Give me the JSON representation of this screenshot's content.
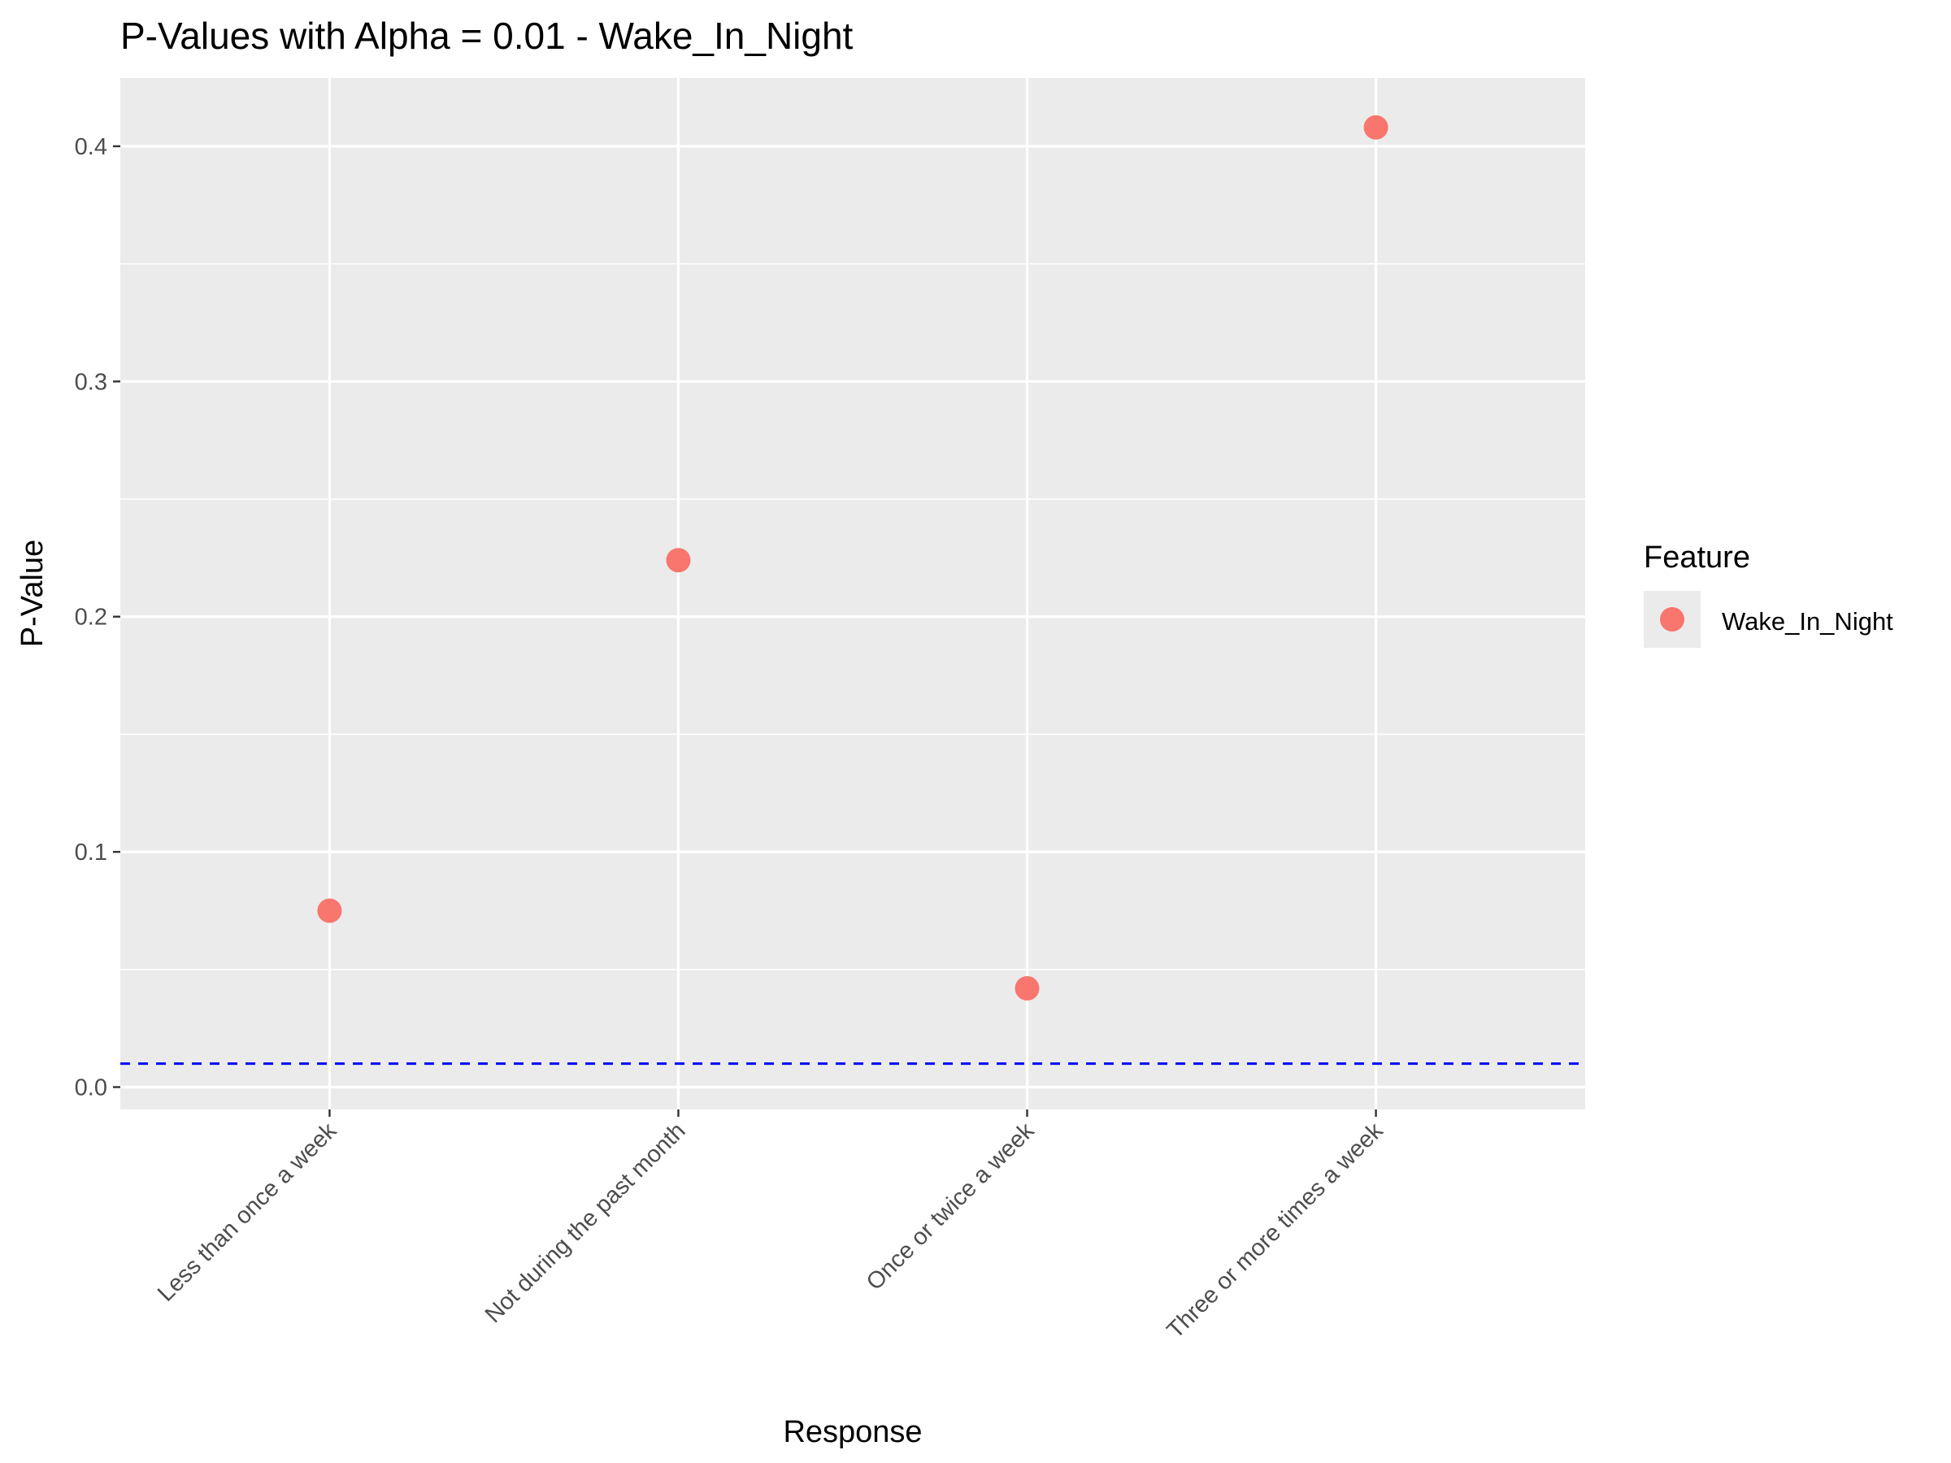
{
  "chart_data": {
    "type": "scatter",
    "title": "P-Values with Alpha = 0.01 - Wake_In_Night",
    "xlabel": "Response",
    "ylabel": "P-Value",
    "categories": [
      "Less than once a week",
      "Not during the past month",
      "Once or twice a week",
      "Three or more times a week"
    ],
    "series": [
      {
        "name": "Wake_In_Night",
        "values": [
          0.075,
          0.224,
          0.042,
          0.408
        ]
      }
    ],
    "ylim": [
      -0.0095,
      0.429
    ],
    "yticks": [
      0.0,
      0.1,
      0.2,
      0.3,
      0.4
    ],
    "ytick_labels": [
      "0.0",
      "0.1",
      "0.2",
      "0.3",
      "0.4"
    ],
    "reference_line": {
      "value": 0.01,
      "color": "#0000ff",
      "style": "dashed"
    },
    "legend": {
      "title": "Feature",
      "position": "right"
    },
    "grid": true,
    "colors": {
      "point": "#f8766d",
      "panel": "#ebebeb",
      "grid": "#ffffff",
      "text": "#000000",
      "tick_text": "#4d4d4d",
      "tick": "#333333"
    }
  }
}
